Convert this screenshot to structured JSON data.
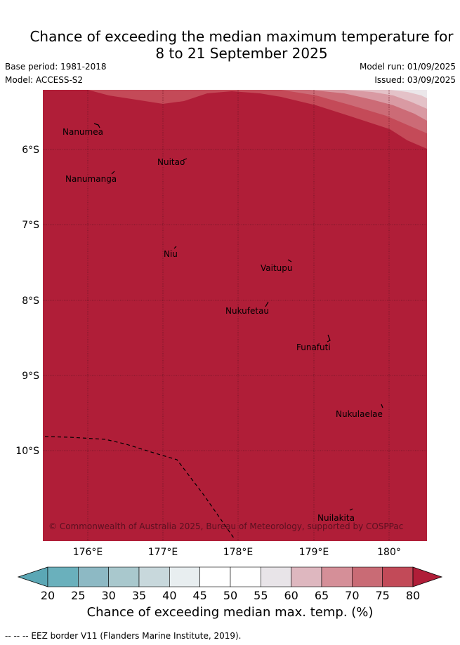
{
  "header": {
    "title_line1": "Chance of exceeding the median maximum temperature for",
    "title_line2": "8 to 21 September 2025",
    "base_period": "Base period: 1981-2018",
    "model": "Model: ACCESS-S2",
    "model_run": "Model run: 01/09/2025",
    "issued": "Issued: 03/09/2025"
  },
  "map": {
    "lon_ticks": [
      "176°E",
      "177°E",
      "178°E",
      "179°E",
      "180°"
    ],
    "lat_ticks": [
      "6°S",
      "7°S",
      "8°S",
      "9°S",
      "10°S"
    ],
    "places": [
      "Nanumea",
      "Nuitao",
      "Nanumanga",
      "Niu",
      "Vaitupu",
      "Nukufetau",
      "Funafuti",
      "Nukulaelae",
      "Nuilakita"
    ],
    "copyright": "© Commonwealth of Australia 2025, Bureau of Meteorology, supported by COSPPac",
    "fill_colors": {
      "above_80": "#b01e38",
      "75_80": "#c44a58",
      "70_75": "#cc6b76",
      "65_70": "#d99aa3",
      "60_65": "#e4c2c8",
      "55_60": "#ebe7ea"
    }
  },
  "colorbar": {
    "ticks": [
      "20",
      "25",
      "30",
      "35",
      "40",
      "45",
      "50",
      "55",
      "60",
      "65",
      "70",
      "75",
      "80"
    ],
    "colors": [
      "#5ba7b5",
      "#6ab0bc",
      "#8db9c4",
      "#a9c8cd",
      "#c8d8dc",
      "#e8eef0",
      "#ffffff",
      "#ffffff",
      "#e8e4e8",
      "#deb7bf",
      "#d58f98",
      "#c96b75",
      "#c24a58",
      "#b01e38"
    ],
    "label": "Chance of exceeding median max. temp. (%)"
  },
  "footer": {
    "eez": "-- -- -- EEZ border V11 (Flanders Marine Institute, 2019)."
  }
}
